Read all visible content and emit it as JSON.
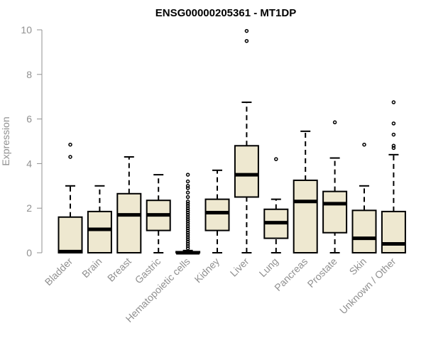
{
  "chart_data": {
    "type": "boxplot",
    "title": "ENSG00000205361 - MT1DP",
    "xlabel": "",
    "ylabel": "Expression",
    "ylim": [
      0,
      10
    ],
    "yticks": [
      0,
      2,
      4,
      6,
      8,
      10
    ],
    "grid": false,
    "legend": "none",
    "colors": {
      "box_fill": "#EEE8D0",
      "stroke": "#000000",
      "axis": "#909090"
    },
    "categories": [
      "Bladder",
      "Brain",
      "Breast",
      "Gastric",
      "Hematopoietic cells",
      "Kidney",
      "Liver",
      "Lung",
      "Pancreas",
      "Prostate",
      "Skin",
      "Unknown / Other"
    ],
    "boxes": [
      {
        "min": 0,
        "q1": 0,
        "median": 0.05,
        "q3": 1.6,
        "max": 3.0,
        "outliers": [
          4.3,
          4.85
        ]
      },
      {
        "min": 0,
        "q1": 0,
        "median": 1.05,
        "q3": 1.85,
        "max": 3.0,
        "outliers": []
      },
      {
        "min": 0,
        "q1": 0,
        "median": 1.7,
        "q3": 2.65,
        "max": 4.3,
        "outliers": []
      },
      {
        "min": 0,
        "q1": 1.0,
        "median": 1.7,
        "q3": 2.35,
        "max": 3.5,
        "outliers": []
      },
      {
        "min": 0,
        "q1": 0,
        "median": 0,
        "q3": 0.05,
        "max": 0.1,
        "outliers": [
          0.2,
          0.3,
          0.4,
          0.5,
          0.6,
          0.7,
          0.8,
          0.9,
          1.0,
          1.1,
          1.2,
          1.3,
          1.4,
          1.5,
          1.6,
          1.7,
          1.8,
          1.9,
          2.0,
          2.1,
          2.2,
          2.3,
          2.5,
          2.7,
          2.9,
          3.0,
          3.2,
          3.5
        ]
      },
      {
        "min": 0,
        "q1": 1.0,
        "median": 1.8,
        "q3": 2.4,
        "max": 3.7,
        "outliers": []
      },
      {
        "min": 0,
        "q1": 2.5,
        "median": 3.5,
        "q3": 4.8,
        "max": 6.75,
        "outliers": [
          9.5,
          9.95
        ]
      },
      {
        "min": 0,
        "q1": 0.65,
        "median": 1.35,
        "q3": 1.95,
        "max": 2.4,
        "outliers": [
          4.2
        ]
      },
      {
        "min": 0,
        "q1": 0,
        "median": 2.3,
        "q3": 3.25,
        "max": 5.45,
        "outliers": []
      },
      {
        "min": 0,
        "q1": 0.9,
        "median": 2.2,
        "q3": 2.75,
        "max": 4.25,
        "outliers": [
          5.85
        ]
      },
      {
        "min": 0,
        "q1": 0,
        "median": 0.65,
        "q3": 1.9,
        "max": 3.0,
        "outliers": [
          4.85
        ]
      },
      {
        "min": 0,
        "q1": 0,
        "median": 0.4,
        "q3": 1.85,
        "max": 4.4,
        "outliers": [
          4.7,
          4.8,
          5.3,
          5.8,
          6.75
        ]
      }
    ]
  }
}
